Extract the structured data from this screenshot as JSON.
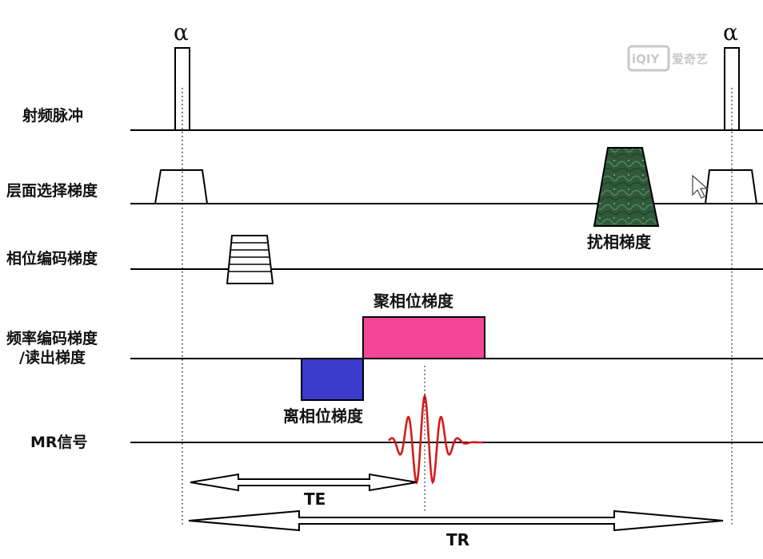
{
  "rows": [
    {
      "id": "rf",
      "label": "射频脉冲"
    },
    {
      "id": "slice",
      "label": "层面选择梯度"
    },
    {
      "id": "phase",
      "label": "相位编码梯度"
    },
    {
      "id": "freq",
      "label": "频率编码梯度",
      "label2": "/读出梯度"
    },
    {
      "id": "signal",
      "label": "MR信号"
    }
  ],
  "pulses": {
    "left": "α",
    "right": "α"
  },
  "annotations": {
    "spoiler": "扰相梯度",
    "rephase": "聚相位梯度",
    "dephase": "离相位梯度",
    "te": "TE",
    "tr": "TR"
  },
  "watermark": {
    "logo": "iQIY",
    "text": "爱奇艺"
  },
  "colors": {
    "spoiler": "#2f5a3a",
    "rephase": "#f5459a",
    "dephase": "#3b3bcc",
    "signal": "#d81a1a",
    "line": "#000000"
  }
}
